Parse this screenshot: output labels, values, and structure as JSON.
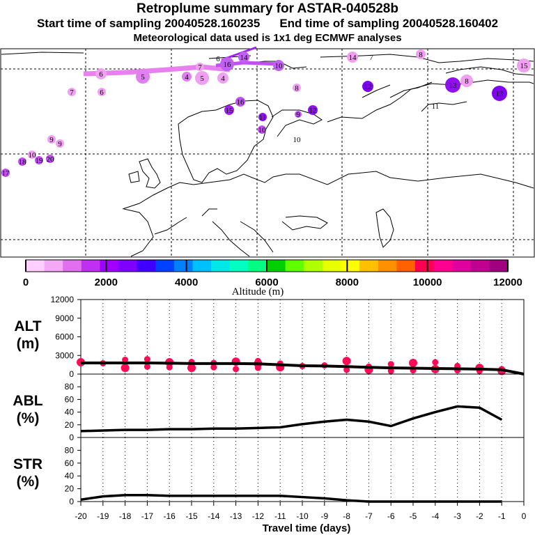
{
  "header": {
    "title": "Retroplume summary for ASTAR-040528b",
    "start_label": "Start time of sampling 20040528.160235",
    "end_label": "End time of sampling 20040528.160402",
    "met_label": "Meteorological data used is 1x1 deg ECMWF analyses"
  },
  "colorbar": {
    "label": "Altitude (m)",
    "ticks": [
      "0",
      "2000",
      "4000",
      "6000",
      "8000",
      "10000",
      "12000"
    ],
    "colors": [
      "#ffd0ff",
      "#f5a8f5",
      "#e070f0",
      "#c030f0",
      "#a000ff",
      "#8000ff",
      "#4000ff",
      "#0040ff",
      "#0080ff",
      "#00c0ff",
      "#00e8e8",
      "#00ffc0",
      "#00ff80",
      "#00d000",
      "#60ff00",
      "#b0ff00",
      "#e8ff00",
      "#ffff00",
      "#ffc000",
      "#ff9000",
      "#ff6000",
      "#ff0050",
      "#ff0090",
      "#e000a0",
      "#c00090",
      "#a00080"
    ]
  },
  "map_labels": [
    {
      "t": "14",
      "c": "#f0a0f0"
    },
    {
      "t": "7",
      "c": "#f0a0f0"
    },
    {
      "t": "8",
      "c": "#f0a0f0"
    },
    {
      "t": "15",
      "c": "#f0a0f0"
    },
    {
      "t": "6",
      "c": "#c060f0"
    },
    {
      "t": "16",
      "c": "#c060f0"
    },
    {
      "t": "14",
      "c": "#c060f0"
    },
    {
      "t": "10",
      "c": "#c060f0"
    },
    {
      "t": "6",
      "c": "#f0a0f0"
    },
    {
      "t": "5",
      "c": "#e080f0"
    },
    {
      "t": "4",
      "c": "#e080f0"
    },
    {
      "t": "5",
      "c": "#f0a0f0"
    },
    {
      "t": "4",
      "c": "#f0a0f0"
    },
    {
      "t": "6",
      "c": "#f0a0f0"
    },
    {
      "t": "7",
      "c": "#f0a0f0"
    },
    {
      "t": "7",
      "c": "#f0a0f0"
    },
    {
      "t": "8",
      "c": "#f0a0f0"
    },
    {
      "t": "9",
      "c": "#c050f0"
    },
    {
      "t": "10",
      "c": "#c050f0"
    },
    {
      "t": "11",
      "c": "#9010f0"
    },
    {
      "t": "12",
      "c": "#9010f0"
    },
    {
      "t": "13",
      "c": "#9010f0"
    },
    {
      "t": "15",
      "c": "#a020f0"
    },
    {
      "t": "16",
      "c": "#c050f0"
    },
    {
      "t": "17",
      "c": "#c050f0"
    },
    {
      "t": "18",
      "c": "#c050f0"
    },
    {
      "t": "19",
      "c": "#c050f0"
    },
    {
      "t": "20",
      "c": "#c050f0"
    },
    {
      "t": "9",
      "c": "#f0a0f0"
    },
    {
      "t": "10",
      "c": "#f0a0f0"
    },
    {
      "t": "11",
      "c": "#f0a0f0"
    },
    {
      "t": "12",
      "c": "#8000f0"
    },
    {
      "t": "13",
      "c": "#8000f0"
    },
    {
      "t": "8",
      "c": "#f0a0f0"
    },
    {
      "t": "9",
      "c": "#f0a0f0"
    },
    {
      "t": "10",
      "c": "#f0a0f0"
    }
  ],
  "chart_data": [
    {
      "type": "scatter",
      "name": "ALT",
      "ylabel": "ALT (m)",
      "ylim": [
        0,
        12000
      ],
      "yticks": [
        "0",
        "3000",
        "6000",
        "9000",
        "12000"
      ],
      "xlim": [
        -20,
        0
      ],
      "x": [
        -20,
        -19,
        -18,
        -17,
        -16,
        -15,
        -14,
        -13,
        -12,
        -11,
        -10,
        -9,
        -8,
        -7,
        -6,
        -5,
        -4,
        -3,
        -2,
        -1,
        0
      ],
      "median_line": [
        1800,
        1800,
        1800,
        1800,
        1750,
        1700,
        1700,
        1700,
        1650,
        1500,
        1350,
        1300,
        1200,
        1100,
        1000,
        950,
        900,
        850,
        800,
        700,
        0
      ],
      "points": [
        {
          "x": -20,
          "y": 1900
        },
        {
          "x": -19,
          "y": 1750
        },
        {
          "x": -18,
          "y": 2300
        },
        {
          "x": -18,
          "y": 1000
        },
        {
          "x": -17,
          "y": 2400
        },
        {
          "x": -17,
          "y": 1200
        },
        {
          "x": -16,
          "y": 1900
        },
        {
          "x": -16,
          "y": 1100
        },
        {
          "x": -15,
          "y": 1950
        },
        {
          "x": -15,
          "y": 1000
        },
        {
          "x": -14,
          "y": 1800
        },
        {
          "x": -14,
          "y": 1100
        },
        {
          "x": -13,
          "y": 2000
        },
        {
          "x": -13,
          "y": 800
        },
        {
          "x": -12,
          "y": 2100
        },
        {
          "x": -12,
          "y": 1700
        },
        {
          "x": -12,
          "y": 1000
        },
        {
          "x": -11,
          "y": 1700
        },
        {
          "x": -11,
          "y": 1100
        },
        {
          "x": -10,
          "y": 1300
        },
        {
          "x": -9,
          "y": 1400
        },
        {
          "x": -8,
          "y": 2100
        },
        {
          "x": -8,
          "y": 700
        },
        {
          "x": -7,
          "y": 1200
        },
        {
          "x": -7,
          "y": 700
        },
        {
          "x": -6,
          "y": 1600
        },
        {
          "x": -6,
          "y": 500
        },
        {
          "x": -5,
          "y": 1800
        },
        {
          "x": -5,
          "y": 600
        },
        {
          "x": -4,
          "y": 1900
        },
        {
          "x": -4,
          "y": 800
        },
        {
          "x": -3,
          "y": 1300
        },
        {
          "x": -3,
          "y": 600
        },
        {
          "x": -2,
          "y": 1000
        },
        {
          "x": -2,
          "y": 500
        },
        {
          "x": -1,
          "y": 800
        },
        {
          "x": -1,
          "y": 500
        }
      ]
    },
    {
      "type": "line",
      "name": "ABL",
      "ylabel": "ABL (%)",
      "ylim": [
        0,
        100
      ],
      "yticks": [
        "0",
        "20",
        "40",
        "60",
        "80"
      ],
      "x": [
        -20,
        -19,
        -18,
        -17,
        -16,
        -15,
        -14,
        -13,
        -12,
        -11,
        -10,
        -9,
        -8,
        -7,
        -6,
        -5,
        -4,
        -3,
        -2,
        -1
      ],
      "values": [
        10,
        11,
        12,
        12,
        13,
        13,
        14,
        14,
        15,
        16,
        21,
        25,
        28,
        25,
        18,
        30,
        40,
        49,
        47,
        28
      ]
    },
    {
      "type": "line",
      "name": "STR",
      "ylabel": "STR (%)",
      "ylim": [
        0,
        100
      ],
      "yticks": [
        "0",
        "20",
        "40",
        "60",
        "80"
      ],
      "x": [
        -20,
        -19,
        -18,
        -17,
        -16,
        -15,
        -14,
        -13,
        -12,
        -11,
        -10,
        -9,
        -8,
        -7,
        -6,
        -5,
        -4,
        -3,
        -2,
        -1
      ],
      "values": [
        3,
        8,
        10,
        10,
        9,
        9,
        9,
        9,
        9,
        9,
        7,
        5,
        2,
        0,
        0,
        0,
        0,
        0,
        0,
        0
      ]
    }
  ],
  "x_axis": {
    "label": "Travel time (days)",
    "ticks": [
      "-20",
      "-19",
      "-18",
      "-17",
      "-16",
      "-15",
      "-14",
      "-13",
      "-12",
      "-11",
      "-10",
      "-9",
      "-8",
      "-7",
      "-6",
      "-5",
      "-4",
      "-3",
      "-2",
      "-1",
      "0"
    ]
  }
}
